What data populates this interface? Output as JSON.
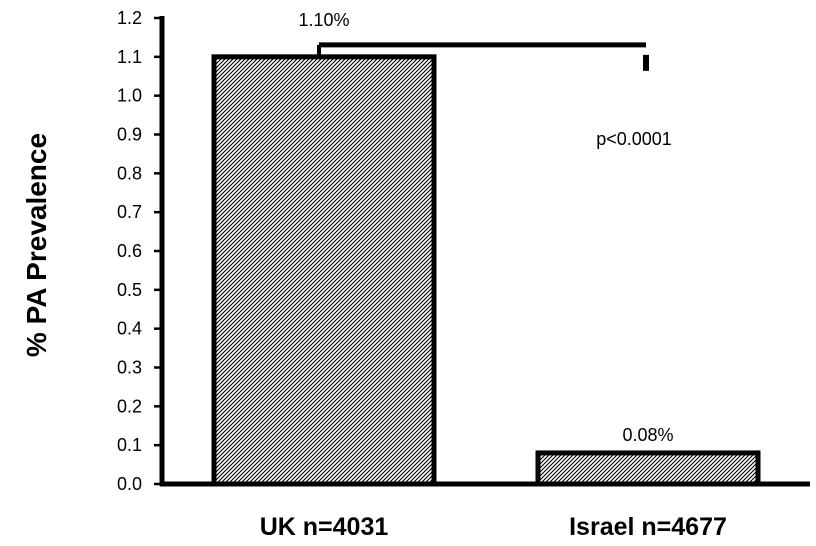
{
  "chart_data": {
    "type": "bar",
    "title": "",
    "xlabel": "",
    "ylabel": "% PA Prevalence",
    "categories": [
      "UK n=4031",
      "Israel n=4677"
    ],
    "values": [
      1.1,
      0.08
    ],
    "data_labels": [
      "1.10%",
      "0.08%"
    ],
    "ylim": [
      0.0,
      1.2
    ],
    "yticks": [
      "0.0",
      "0.1",
      "0.2",
      "0.3",
      "0.4",
      "0.5",
      "0.6",
      "0.7",
      "0.8",
      "0.9",
      "1.0",
      "1.1",
      "1.2"
    ],
    "grid": false,
    "legend": "none",
    "bar_fill": "diagonal-hatch",
    "bar_color": "#000000",
    "annotation": "p<0.0001",
    "significance_bracket": true
  }
}
